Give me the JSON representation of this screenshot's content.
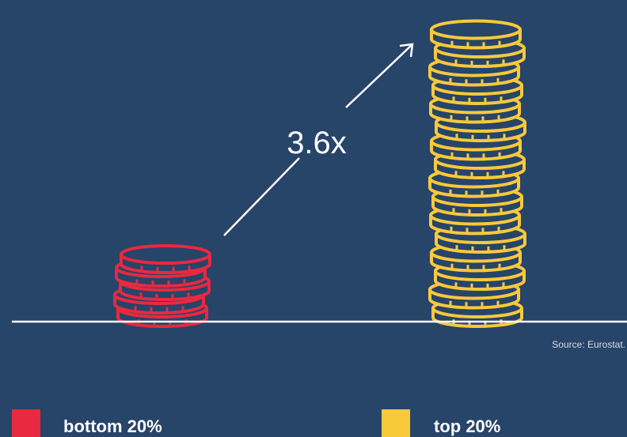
{
  "annotation": "3.6x",
  "source": "Source: Eurostat.",
  "legend": [
    {
      "label": "bottom 20%",
      "color": "#e8293f"
    },
    {
      "label": "top 20%",
      "color": "#f9c93c"
    }
  ]
}
